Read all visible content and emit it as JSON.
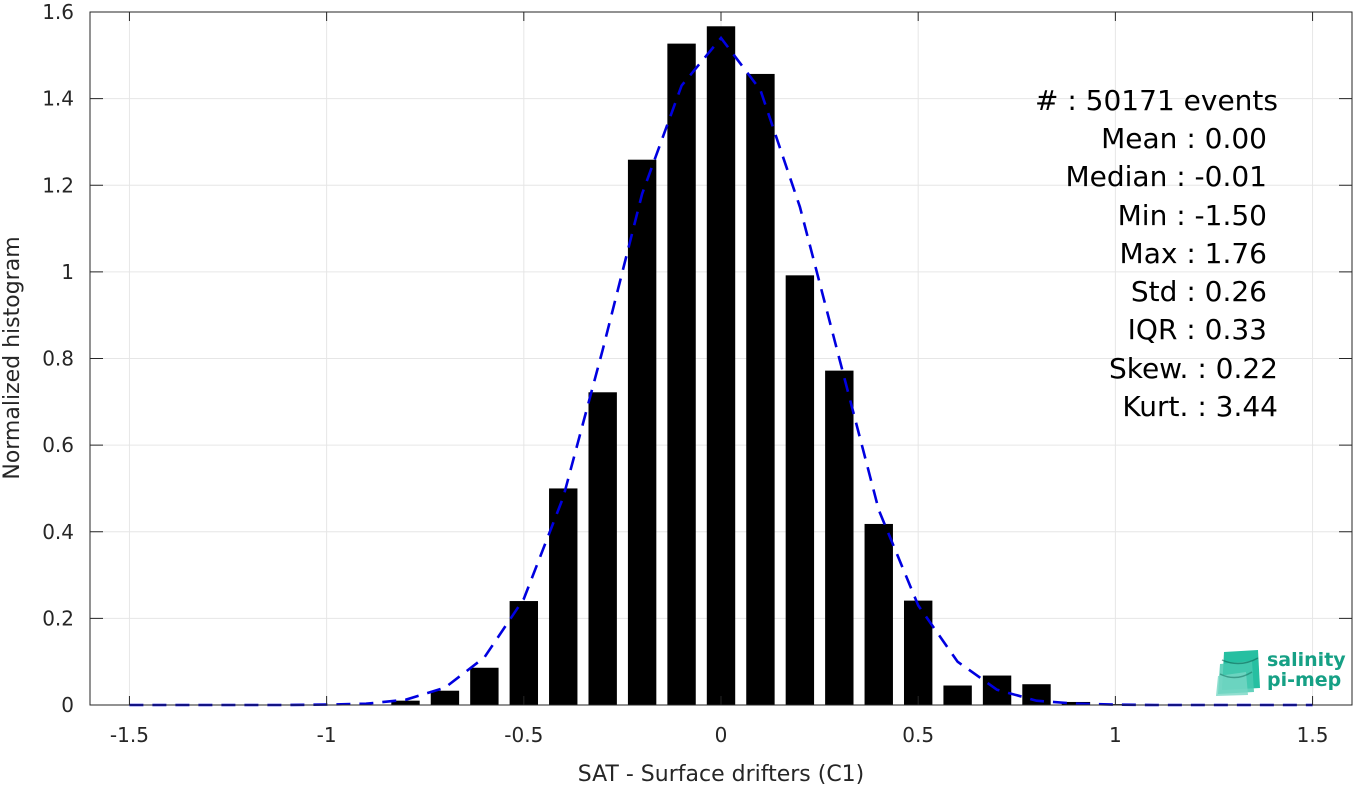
{
  "chart_data": {
    "type": "bar",
    "xlabel": "SAT - Surface drifters (C1)",
    "ylabel": "Normalized histogram",
    "xlim": [
      -1.6,
      1.6
    ],
    "ylim": [
      0,
      1.6
    ],
    "grid": true,
    "xticks": [
      "-1.5",
      "-1",
      "-0.5",
      "0",
      "0.5",
      "1",
      "1.5"
    ],
    "yticks": [
      "0",
      "0.2",
      "0.4",
      "0.6",
      "0.8",
      "1",
      "1.2",
      "1.4",
      "1.6"
    ],
    "bar_color": "#000000",
    "bar_width": 0.072,
    "bars": {
      "x": [
        -1.5,
        -1.4,
        -1.3,
        -1.2,
        -1.1,
        -1.0,
        -0.9,
        -0.8,
        -0.7,
        -0.6,
        -0.5,
        -0.4,
        -0.3,
        -0.2,
        -0.1,
        0.0,
        0.1,
        0.2,
        0.3,
        0.4,
        0.5,
        0.6,
        0.7,
        0.8,
        0.9,
        1.0,
        1.1,
        1.2,
        1.3,
        1.4,
        1.5
      ],
      "values": [
        0.0,
        0.0,
        0.0,
        0.0,
        0.0,
        0.0,
        0.001,
        0.01,
        0.033,
        0.086,
        0.24,
        0.5,
        0.722,
        1.259,
        1.527,
        1.567,
        1.457,
        0.992,
        0.772,
        0.418,
        0.241,
        0.045,
        0.068,
        0.048,
        0.007,
        0.002,
        0.001,
        0.0,
        0.0,
        0.0,
        0.0
      ]
    },
    "fit_curve": {
      "style": "dashed",
      "color": "#0000e0",
      "x": [
        -1.5,
        -1.4,
        -1.3,
        -1.2,
        -1.1,
        -1.0,
        -0.9,
        -0.8,
        -0.7,
        -0.6,
        -0.5,
        -0.4,
        -0.3,
        -0.2,
        -0.1,
        0.0,
        0.1,
        0.2,
        0.3,
        0.4,
        0.5,
        0.6,
        0.7,
        0.8,
        0.9,
        1.0,
        1.1,
        1.2,
        1.3,
        1.4,
        1.5
      ],
      "values": [
        0.0,
        0.0,
        0.0,
        0.0,
        0.0,
        0.001,
        0.003,
        0.012,
        0.04,
        0.11,
        0.245,
        0.48,
        0.82,
        1.18,
        1.43,
        1.54,
        1.42,
        1.15,
        0.8,
        0.45,
        0.23,
        0.1,
        0.035,
        0.01,
        0.003,
        0.001,
        0.0,
        0.0,
        0.0,
        0.0,
        0.0
      ]
    },
    "annotations": [
      "#  : 50171 events",
      "Mean : 0.00",
      "Median : -0.01",
      "Min : -1.50",
      "Max : 1.76",
      "Std : 0.26",
      "IQR : 0.33",
      "Skew. : 0.22",
      "Kurt. : 3.44"
    ]
  },
  "logo": {
    "line1": "salinity",
    "line2": "pi-mep",
    "color": "#16a085"
  }
}
